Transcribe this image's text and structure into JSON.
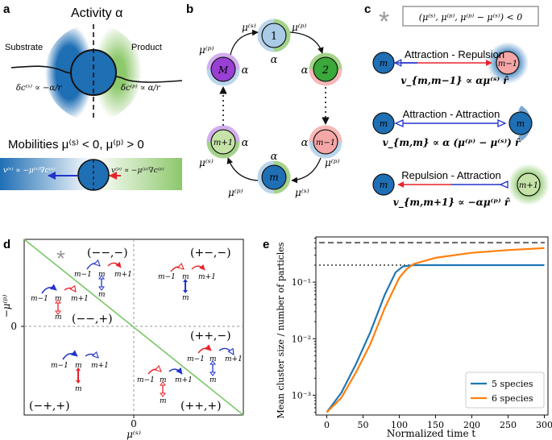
{
  "panel_letters": {
    "a": "a",
    "b": "b",
    "c": "c",
    "d": "d",
    "e": "e"
  },
  "a": {
    "activity": "Activity α",
    "substrate": "Substrate",
    "product": "Product",
    "dc_s": "δc⁽ˢ⁾ ∝ −α/r",
    "dc_p": "δc⁽ᵖ⁾ ∝ α/r",
    "mobilities": "Mobilities μ⁽ˢ⁾ < 0, μ⁽ᵖ⁾ > 0",
    "v_s": "v⁽ˢ⁾ ∝ −μ⁽ˢ⁾∇c⁽ˢ⁾",
    "v_p": "v⁽ᵖ⁾ ∝ −μ⁽ᵖ⁾∇c⁽ᵖ⁾"
  },
  "b": {
    "nodes": {
      "n1": "1",
      "n2": "2",
      "nM": "M",
      "nm": "m",
      "nm1": "m−1",
      "nmp1": "m+1"
    },
    "alpha": "α",
    "mu_s": "μ⁽ˢ⁾",
    "mu_p": "μ⁽ᵖ⁾",
    "dots": "⋮"
  },
  "c": {
    "star": "*",
    "condition": "(μ⁽ˢ⁾, μ⁽ᵖ⁾, μ⁽ᵖ⁾ − μ⁽ˢ⁾) < 0",
    "rows": [
      {
        "label": "Attraction - Repulsion",
        "left": "m",
        "right": "m−1",
        "formula": "v_{m,m−1} ∝ αμ⁽ˢ⁾ r̂"
      },
      {
        "label": "Attraction - Attraction",
        "left": "m",
        "right": "m",
        "formula": "v_{m,m} ∝ α (μ⁽ᵖ⁾ − μ⁽ˢ⁾) r̂"
      },
      {
        "label": "Repulsion - Attraction",
        "left": "m",
        "right": "m+1",
        "formula": "v_{m,m+1} ∝ −αμ⁽ᵖ⁾ r̂"
      }
    ]
  },
  "d": {
    "xlabel": "μ⁽ˢ⁾",
    "ylabel": "−μ⁽ᵖ⁾",
    "xtick": "0",
    "ytick": "0",
    "star": "*",
    "quadrants": [
      "(−−,−)",
      "(+−,−)",
      "(−−,+)",
      "(++,−)",
      "(−+,+)",
      "(++,+)"
    ],
    "nodes": {
      "m1": "m−1",
      "m": "m",
      "mp1": "m+1"
    }
  },
  "e": {
    "chart_data": {
      "type": "line",
      "xlabel": "Normalized time t̄",
      "ylabel": "Mean cluster size / number of particles",
      "xlim": [
        -15,
        305
      ],
      "ylim_log10": [
        -3.35,
        -0.2
      ],
      "xticks": [
        "0",
        "50",
        "100",
        "150",
        "200",
        "250",
        "300"
      ],
      "yticks": [
        "10⁻³",
        "10⁻²",
        "10⁻¹"
      ],
      "legend_position": "lower-right",
      "series": [
        {
          "name": "5 species",
          "color": "#1f77b4",
          "x": [
            0,
            20,
            40,
            60,
            80,
            95,
            105,
            120,
            150,
            200,
            250,
            300
          ],
          "y": [
            0.0005,
            0.0011,
            0.0035,
            0.013,
            0.06,
            0.15,
            0.19,
            0.2,
            0.2,
            0.2,
            0.2,
            0.2
          ]
        },
        {
          "name": "6 species",
          "color": "#ff7f0e",
          "x": [
            0,
            20,
            40,
            60,
            80,
            100,
            110,
            120,
            150,
            200,
            250,
            300
          ],
          "y": [
            0.0005,
            0.0009,
            0.0025,
            0.008,
            0.035,
            0.12,
            0.17,
            0.21,
            0.27,
            0.33,
            0.37,
            0.4
          ]
        }
      ],
      "reference_lines": [
        {
          "value": 0.5,
          "style": "dashed",
          "color": "#666666"
        },
        {
          "value": 0.2,
          "style": "dotted",
          "color": "#666666"
        }
      ]
    }
  },
  "colors": {
    "blue": "#1f6fb5",
    "green": "#8dc86b",
    "red": "#e8232a",
    "navy": "#2233cc",
    "pink": "#f5a6a6",
    "light_blue": "#a9cbe6",
    "purple": "#9a3fd4"
  }
}
